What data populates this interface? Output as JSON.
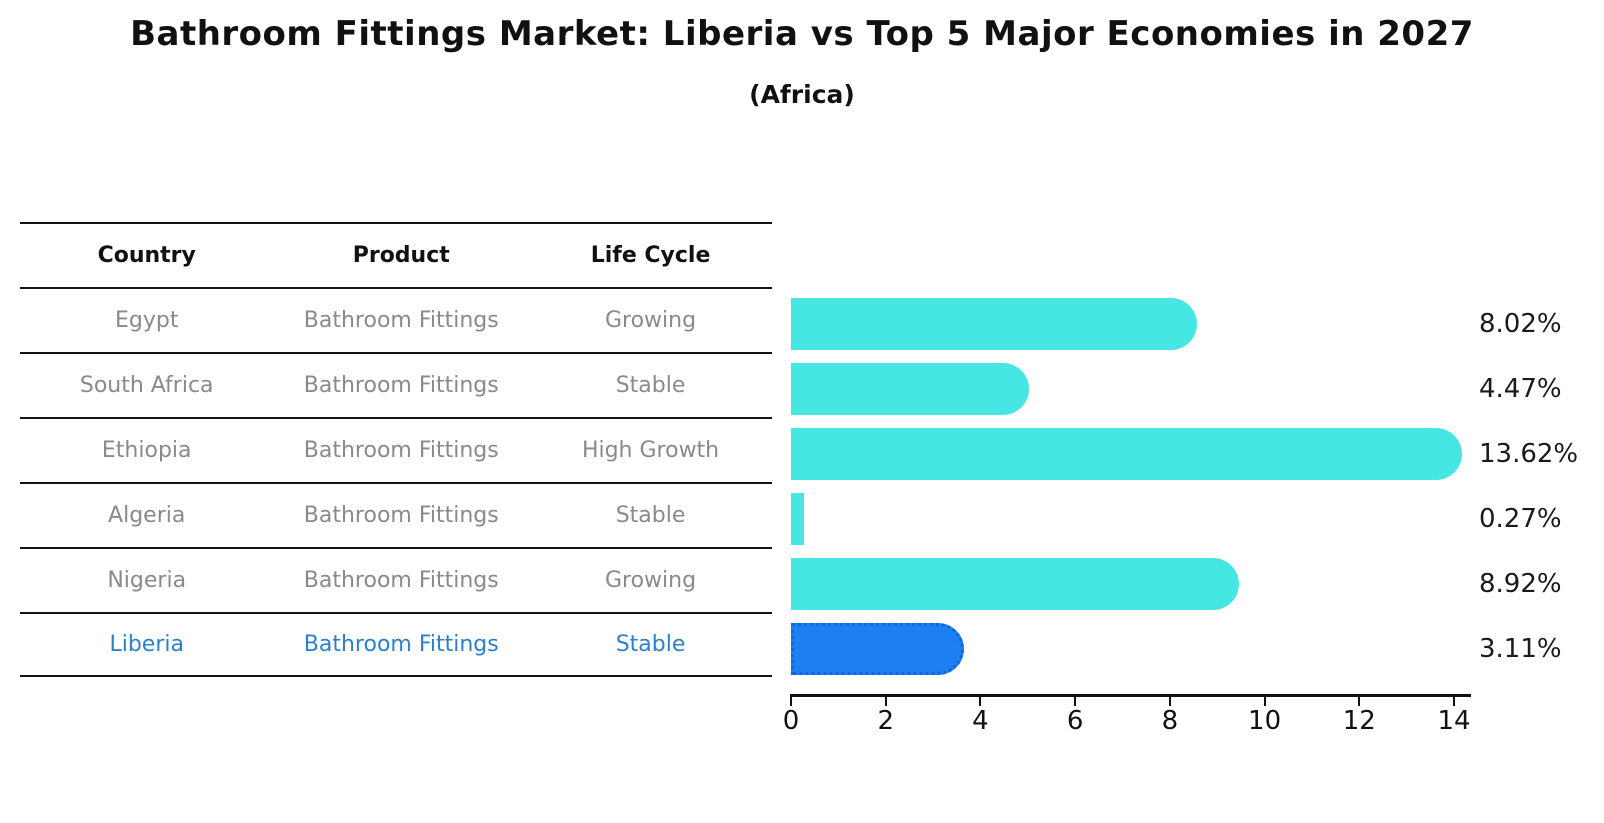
{
  "title": "Bathroom Fittings Market: Liberia vs Top 5 Major Economies in 2027",
  "subtitle": "(Africa)",
  "table": {
    "headers": [
      "Country",
      "Product",
      "Life Cycle"
    ],
    "rows": [
      {
        "country": "Egypt",
        "product": "Bathroom Fittings",
        "life_cycle": "Growing",
        "highlight": false
      },
      {
        "country": "South Africa",
        "product": "Bathroom Fittings",
        "life_cycle": "Stable",
        "highlight": false
      },
      {
        "country": "Ethiopia",
        "product": "Bathroom Fittings",
        "life_cycle": "High Growth",
        "highlight": false
      },
      {
        "country": "Algeria",
        "product": "Bathroom Fittings",
        "life_cycle": "Stable",
        "highlight": false
      },
      {
        "country": "Nigeria",
        "product": "Bathroom Fittings",
        "life_cycle": "Growing",
        "highlight": false
      },
      {
        "country": "Liberia",
        "product": "Bathroom Fittings",
        "life_cycle": "Stable",
        "highlight": true
      }
    ]
  },
  "chart_data": {
    "type": "bar",
    "orientation": "horizontal",
    "title": "Bathroom Fittings Market: Liberia vs Top 5 Major Economies in 2027 (Africa)",
    "categories": [
      "Egypt",
      "South Africa",
      "Ethiopia",
      "Algeria",
      "Nigeria",
      "Liberia"
    ],
    "values": [
      8.02,
      4.47,
      13.62,
      0.27,
      8.92,
      3.11
    ],
    "value_labels": [
      "8.02%",
      "4.47%",
      "13.62%",
      "0.27%",
      "8.92%",
      "3.11%"
    ],
    "xlabel": "",
    "ylabel": "",
    "xlim": [
      0,
      14
    ],
    "x_ticks": [
      0,
      2,
      4,
      6,
      8,
      10,
      12,
      14
    ],
    "grid": false,
    "legend": false,
    "bar_color": "#46e6e2",
    "highlight_index": 5,
    "highlight_color": "#1c80f2",
    "highlight_border_color": "#1266dc"
  },
  "colors": {
    "text_dark": "#111111",
    "text_muted": "#8a8a8a",
    "highlight_text": "#2e80cb"
  }
}
